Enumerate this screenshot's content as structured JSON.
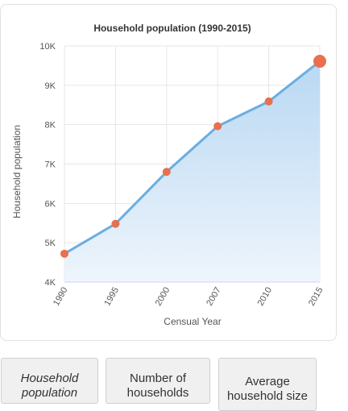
{
  "chart_data": {
    "type": "area",
    "title": "Household population (1990-2015)",
    "xlabel": "Censual Year",
    "ylabel": "Household population",
    "categories": [
      "1990",
      "1995",
      "2000",
      "2007",
      "2010",
      "2015"
    ],
    "series": [
      {
        "values": [
          4720,
          5480,
          6800,
          7960,
          8590,
          9610
        ]
      }
    ],
    "ylim": [
      4000,
      10000
    ],
    "y_ticks": [
      {
        "value": 4000,
        "label": "4K"
      },
      {
        "value": 5000,
        "label": "5K"
      },
      {
        "value": 6000,
        "label": "6K"
      },
      {
        "value": 7000,
        "label": "7K"
      },
      {
        "value": 8000,
        "label": "8K"
      },
      {
        "value": 9000,
        "label": "9K"
      },
      {
        "value": 10000,
        "label": "10K"
      }
    ],
    "highlighted_point": "2015",
    "grid": true,
    "colors": {
      "line": "#6aaee0",
      "marker": "#e8704f",
      "area_top": "#b9d8f2",
      "area_bottom": "#eef5fc"
    }
  },
  "tabs": [
    {
      "label": "Household population",
      "active": true
    },
    {
      "label": "Number of households",
      "active": false
    },
    {
      "label": "Average household size",
      "active": false
    }
  ]
}
